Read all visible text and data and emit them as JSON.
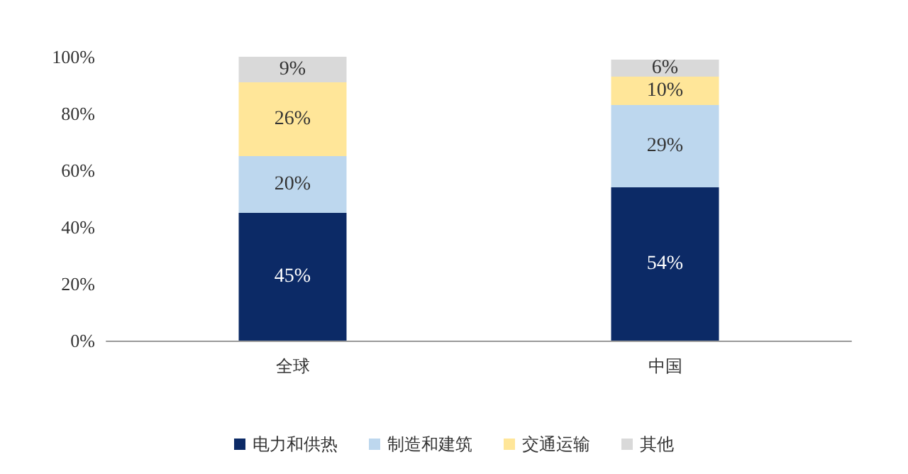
{
  "chart_data": {
    "type": "bar",
    "stacked": true,
    "categories": [
      "全球",
      "中国"
    ],
    "series": [
      {
        "name": "电力和供热",
        "color": "#0c2a66",
        "values": [
          45,
          54
        ],
        "value_labels": [
          "45%",
          "54%"
        ]
      },
      {
        "name": "制造和建筑",
        "color": "#bdd7ee",
        "values": [
          20,
          29
        ],
        "value_labels": [
          "20%",
          "29%"
        ]
      },
      {
        "name": "交通运输",
        "color": "#ffe699",
        "values": [
          26,
          10
        ],
        "value_labels": [
          "26%",
          "10%"
        ]
      },
      {
        "name": "其他",
        "color": "#d9d9d9",
        "values": [
          9,
          6
        ],
        "value_labels": [
          "9%",
          "6%"
        ]
      }
    ],
    "ylim": [
      0,
      100
    ],
    "yticks": [
      {
        "value": 0,
        "label": "0%"
      },
      {
        "value": 20,
        "label": "20%"
      },
      {
        "value": 40,
        "label": "40%"
      },
      {
        "value": 60,
        "label": "60%"
      },
      {
        "value": 80,
        "label": "80%"
      },
      {
        "value": 100,
        "label": "100%"
      }
    ],
    "grid": false,
    "legend": "bottom"
  }
}
